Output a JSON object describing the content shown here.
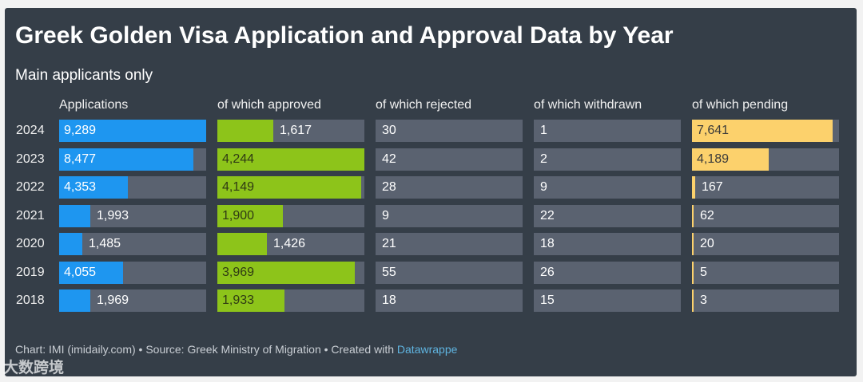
{
  "chart_data": {
    "type": "table",
    "title": "Greek Golden Visa Application and Approval Data by Year",
    "subtitle": "Main applicants only",
    "columns": [
      "Applications",
      "of which approved",
      "of which rejected",
      "of which withdrawn",
      "of which pending"
    ],
    "years": [
      "2024",
      "2023",
      "2022",
      "2021",
      "2020",
      "2019",
      "2018"
    ],
    "series": [
      {
        "name": "Applications",
        "values": [
          9289,
          8477,
          4353,
          1993,
          1485,
          4055,
          1969
        ],
        "display": [
          "9,289",
          "8,477",
          "4,353",
          "1,993",
          "1,485",
          "4,055",
          "1,969"
        ],
        "color": "#1e96f0",
        "max": 9289
      },
      {
        "name": "of which approved",
        "values": [
          1617,
          4244,
          4149,
          1900,
          1426,
          3969,
          1933
        ],
        "display": [
          "1,617",
          "4,244",
          "4,149",
          "1,900",
          "1,426",
          "3,969",
          "1,933"
        ],
        "color": "#8dc41a",
        "max": 4244
      },
      {
        "name": "of which rejected",
        "values": [
          30,
          42,
          28,
          9,
          21,
          55,
          18
        ],
        "display": [
          "30",
          "42",
          "28",
          "9",
          "21",
          "55",
          "18"
        ],
        "color": "#5a6270",
        "max": 0
      },
      {
        "name": "of which withdrawn",
        "values": [
          1,
          2,
          9,
          22,
          18,
          26,
          15
        ],
        "display": [
          "1",
          "2",
          "9",
          "22",
          "18",
          "26",
          "15"
        ],
        "color": "#5a6270",
        "max": 0
      },
      {
        "name": "of which pending",
        "values": [
          7641,
          4189,
          167,
          62,
          20,
          5,
          3
        ],
        "display": [
          "7,641",
          "4,189",
          "167",
          "62",
          "20",
          "5",
          "3"
        ],
        "color": "#fcd16c",
        "max": 8000
      }
    ]
  },
  "footer": {
    "text": "Chart: IMI (imidaily.com) • Source: Greek Ministry of Migration • Created with ",
    "link": "Datawrappe"
  },
  "watermark": "大数跨境",
  "colors": {
    "background": "#353e48",
    "cell": "#5a6270",
    "applications": "#1e96f0",
    "approved": "#8dc41a",
    "pending": "#fcd16c"
  }
}
